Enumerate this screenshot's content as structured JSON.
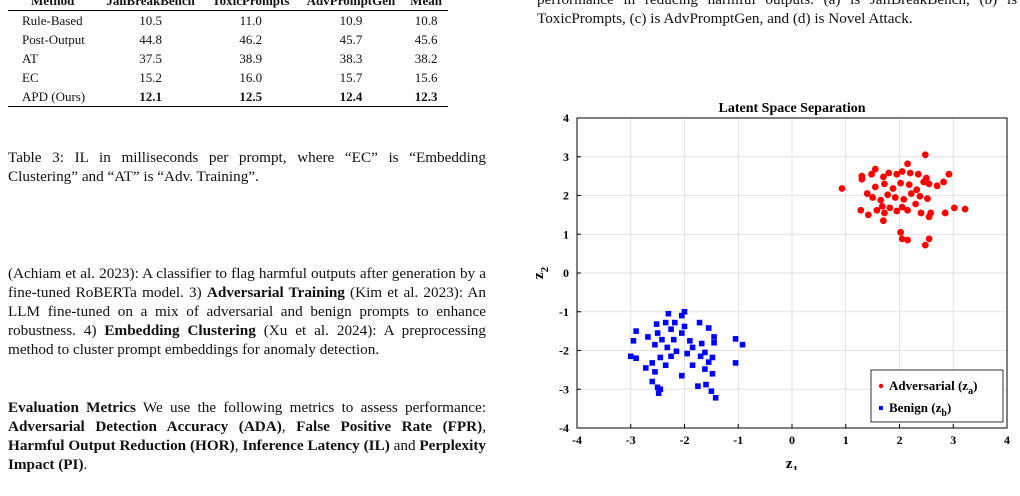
{
  "table": {
    "headers": [
      "Method",
      "JailBreakBench",
      "ToxicPrompts",
      "AdvPromptGen",
      "Mean"
    ],
    "rows": [
      [
        "Rule-Based",
        "10.5",
        "11.0",
        "10.9",
        "10.8"
      ],
      [
        "Post-Output",
        "44.8",
        "46.2",
        "45.7",
        "45.6"
      ],
      [
        "AT",
        "37.5",
        "38.9",
        "38.3",
        "38.2"
      ],
      [
        "EC",
        "15.2",
        "16.0",
        "15.7",
        "15.6"
      ],
      [
        "APD (Ours)",
        "12.1",
        "12.5",
        "12.4",
        "12.3"
      ]
    ]
  },
  "table_caption": "Table 3: IL in milliseconds per prompt, where “EC” is “Embedding Clustering” and “AT” is “Adv. Training”.",
  "para1": {
    "t1": "(Achiam et al. 2023): A classifier to flag harmful outputs after generation by a fine-tuned RoBERTa model. 3) ",
    "b1": "Adversarial Training",
    "t2": " (Kim et al. 2023): An LLM fine-tuned on a mix of adversarial and benign prompts to enhance robustness. 4) ",
    "b2": "Embedding Clustering",
    "t3": " (Xu et al. 2024): A preprocessing method to cluster prompt embeddings for anomaly detection."
  },
  "para2": {
    "heading": "Evaluation Metrics",
    "t1": " We use the following metrics to assess performance: ",
    "b1": "Adversarial Detection Accuracy (ADA)",
    "t2": ", ",
    "b2": "False Positive Rate (FPR)",
    "t3": ", ",
    "b3": "Harmful Output Reduction (HOR)",
    "t4": ", ",
    "b4": "Inference Latency (IL)",
    "t5": " and ",
    "b5": "Perplexity Impact (PI)",
    "t6": "."
  },
  "figure_caption": "performance in reducing harmful outputs. (a) is JailBreakBench, (b) is ToxicPrompts, (c) is AdvPromptGen, and (d) is Novel Attack.",
  "chart_data": {
    "type": "scatter",
    "title": "Latent Space Separation",
    "xlabel": "z",
    "xlabel_sub": "1",
    "ylabel": "z",
    "ylabel_sub": "2",
    "xlim": [
      -4,
      4
    ],
    "ylim": [
      -4,
      4
    ],
    "xticks": [
      -4,
      -3,
      -2,
      -1,
      0,
      1,
      2,
      3,
      4
    ],
    "yticks": [
      -4,
      -3,
      -2,
      -1,
      0,
      1,
      2,
      3,
      4
    ],
    "grid": true,
    "legend_position": "bottom-right",
    "series": [
      {
        "name": "Adversarial (z",
        "name_sub": "a",
        "name_end": ")",
        "color": "#ff0000",
        "marker": "circle",
        "points": [
          [
            0.93,
            2.18
          ],
          [
            1.3,
            2.5
          ],
          [
            1.3,
            2.42
          ],
          [
            1.48,
            2.55
          ],
          [
            1.55,
            2.68
          ],
          [
            1.7,
            2.48
          ],
          [
            1.8,
            2.58
          ],
          [
            1.95,
            2.55
          ],
          [
            2.05,
            2.62
          ],
          [
            2.2,
            2.58
          ],
          [
            2.15,
            2.82
          ],
          [
            2.48,
            3.05
          ],
          [
            2.35,
            2.55
          ],
          [
            2.5,
            2.45
          ],
          [
            2.55,
            2.3
          ],
          [
            1.4,
            2.05
          ],
          [
            1.55,
            2.22
          ],
          [
            1.72,
            2.3
          ],
          [
            1.88,
            2.18
          ],
          [
            2.02,
            2.32
          ],
          [
            2.18,
            2.28
          ],
          [
            2.32,
            2.15
          ],
          [
            2.45,
            2.35
          ],
          [
            2.7,
            2.25
          ],
          [
            2.82,
            2.35
          ],
          [
            2.92,
            2.55
          ],
          [
            1.5,
            1.95
          ],
          [
            1.65,
            1.88
          ],
          [
            1.78,
            2.02
          ],
          [
            1.92,
            1.95
          ],
          [
            2.08,
            1.9
          ],
          [
            2.22,
            2.05
          ],
          [
            2.38,
            1.98
          ],
          [
            2.52,
            1.92
          ],
          [
            1.28,
            1.62
          ],
          [
            1.42,
            1.5
          ],
          [
            1.58,
            1.62
          ],
          [
            1.68,
            1.72
          ],
          [
            1.72,
            1.55
          ],
          [
            1.82,
            1.68
          ],
          [
            1.95,
            1.6
          ],
          [
            2.05,
            1.7
          ],
          [
            2.15,
            1.62
          ],
          [
            2.3,
            1.78
          ],
          [
            2.4,
            1.55
          ],
          [
            2.55,
            1.45
          ],
          [
            1.7,
            1.35
          ],
          [
            2.02,
            1.05
          ],
          [
            2.15,
            0.85
          ],
          [
            2.05,
            0.88
          ],
          [
            2.48,
            0.72
          ],
          [
            2.55,
            0.88
          ],
          [
            2.85,
            1.55
          ],
          [
            3.02,
            1.68
          ],
          [
            3.22,
            1.65
          ],
          [
            2.58,
            1.55
          ]
        ]
      },
      {
        "name": "Benign (z",
        "name_sub": "b",
        "name_end": ")",
        "color": "#0000ff",
        "marker": "square",
        "points": [
          [
            -2.0,
            -1.0
          ],
          [
            -2.3,
            -1.05
          ],
          [
            -2.05,
            -1.1
          ],
          [
            -2.52,
            -1.32
          ],
          [
            -2.35,
            -1.28
          ],
          [
            -2.18,
            -1.28
          ],
          [
            -2.0,
            -1.38
          ],
          [
            -1.72,
            -1.28
          ],
          [
            -1.55,
            -1.42
          ],
          [
            -2.9,
            -1.5
          ],
          [
            -2.5,
            -1.55
          ],
          [
            -2.25,
            -1.45
          ],
          [
            -2.05,
            -1.55
          ],
          [
            -2.68,
            -1.65
          ],
          [
            -2.42,
            -1.72
          ],
          [
            -2.2,
            -1.72
          ],
          [
            -1.9,
            -1.75
          ],
          [
            -1.68,
            -1.82
          ],
          [
            -1.45,
            -1.8
          ],
          [
            -1.45,
            -1.65
          ],
          [
            -1.05,
            -1.7
          ],
          [
            -0.92,
            -1.85
          ],
          [
            -2.95,
            -1.75
          ],
          [
            -2.55,
            -1.85
          ],
          [
            -2.32,
            -1.92
          ],
          [
            -2.15,
            -2.02
          ],
          [
            -1.85,
            -1.92
          ],
          [
            -1.62,
            -2.05
          ],
          [
            -3.0,
            -2.15
          ],
          [
            -2.9,
            -2.2
          ],
          [
            -2.45,
            -2.18
          ],
          [
            -2.25,
            -2.15
          ],
          [
            -1.95,
            -2.08
          ],
          [
            -1.7,
            -2.15
          ],
          [
            -1.48,
            -2.18
          ],
          [
            -2.6,
            -2.32
          ],
          [
            -2.35,
            -2.38
          ],
          [
            -1.85,
            -2.38
          ],
          [
            -1.55,
            -2.3
          ],
          [
            -1.05,
            -2.32
          ],
          [
            -2.72,
            -2.45
          ],
          [
            -1.62,
            -2.48
          ],
          [
            -2.55,
            -2.55
          ],
          [
            -2.05,
            -2.65
          ],
          [
            -1.48,
            -2.6
          ],
          [
            -2.6,
            -2.8
          ],
          [
            -2.5,
            -2.95
          ],
          [
            -2.45,
            -3.0
          ],
          [
            -1.75,
            -2.92
          ],
          [
            -1.6,
            -2.88
          ],
          [
            -1.5,
            -3.05
          ],
          [
            -1.42,
            -3.22
          ],
          [
            -2.48,
            -3.1
          ]
        ]
      }
    ]
  }
}
